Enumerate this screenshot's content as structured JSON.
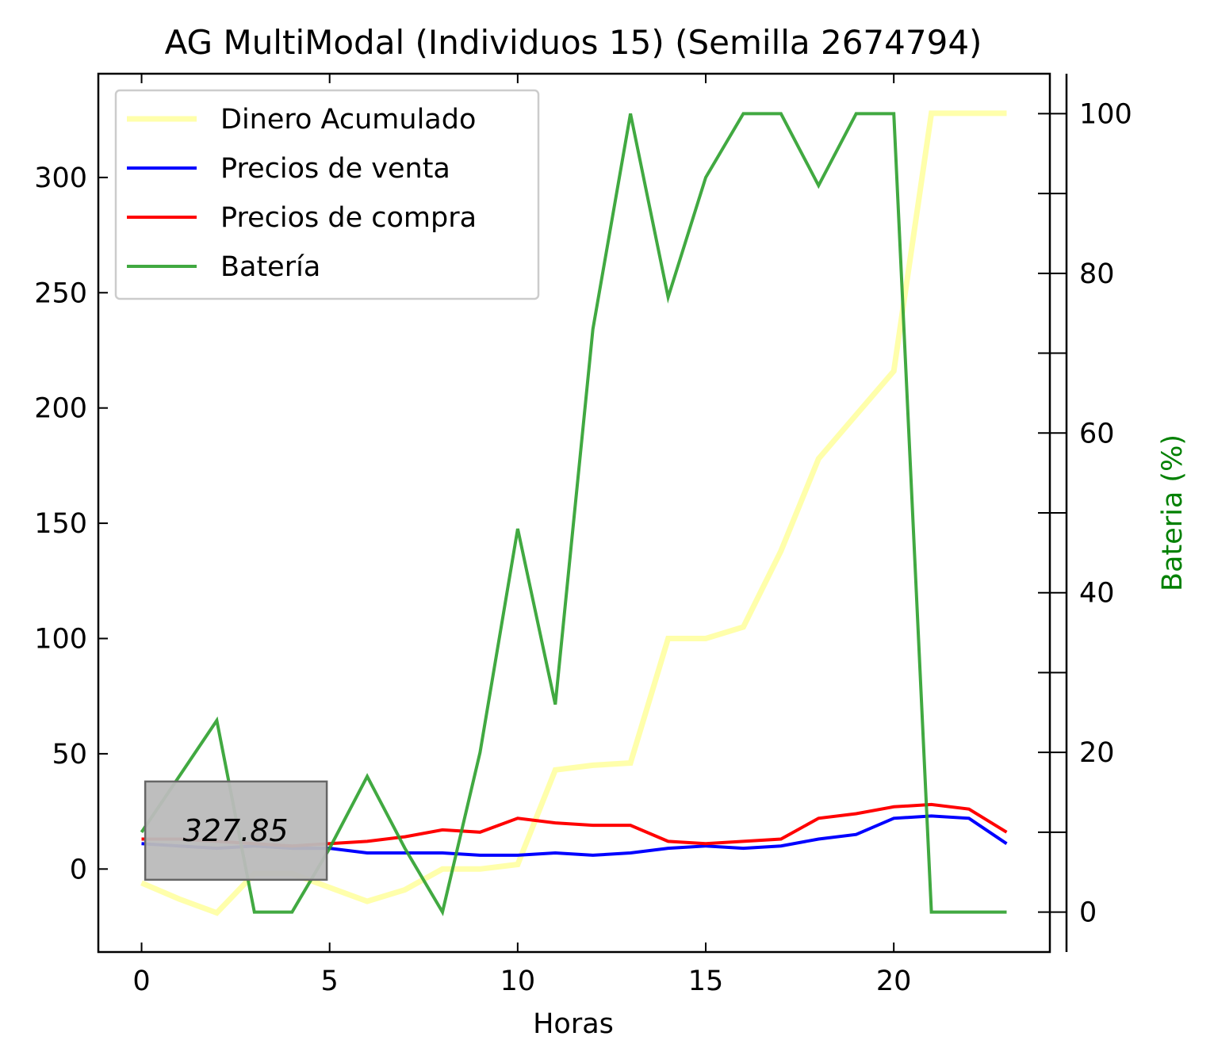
{
  "chart_data": {
    "type": "line",
    "title": "AG MultiModal (Individuos 15) (Semilla 2674794)",
    "xlabel": "Horas",
    "ylabel": "",
    "y2label": "Bateria (%)",
    "xlim": [
      -1.15,
      24.15
    ],
    "ylim": [
      -36,
      345
    ],
    "y2lim": [
      -5,
      105
    ],
    "xticks": [
      0,
      5,
      10,
      15,
      20
    ],
    "yticks": [
      0,
      50,
      100,
      150,
      200,
      250,
      300
    ],
    "y2ticks": [
      0,
      20,
      40,
      60,
      80,
      100
    ],
    "grid": false,
    "legend_position": "top-left",
    "x": [
      0,
      1,
      2,
      3,
      4,
      5,
      6,
      7,
      8,
      9,
      10,
      11,
      12,
      13,
      14,
      15,
      16,
      17,
      18,
      19,
      20,
      21,
      22,
      23
    ],
    "series": [
      {
        "name": "Dinero Acumulado",
        "axis": "left",
        "color": "#ffff66",
        "values": [
          -6,
          -13,
          -19,
          -2,
          -2,
          -8,
          -14,
          -9,
          0,
          0,
          2,
          43,
          45,
          46,
          100,
          100,
          105,
          138,
          178,
          197,
          216,
          327.85,
          327.85,
          327.85
        ]
      },
      {
        "name": "Precios de venta",
        "axis": "left",
        "color": "#0000ff",
        "values": [
          11,
          10,
          9,
          10,
          9,
          9,
          7,
          7,
          7,
          6,
          6,
          7,
          6,
          7,
          9,
          10,
          9,
          10,
          13,
          15,
          22,
          23,
          22,
          11
        ]
      },
      {
        "name": "Precios de compra",
        "axis": "left",
        "color": "#ff0000",
        "values": [
          13,
          13,
          12,
          11,
          10,
          11,
          12,
          14,
          17,
          16,
          22,
          20,
          19,
          19,
          12,
          11,
          12,
          13,
          22,
          24,
          27,
          28,
          26,
          16
        ]
      },
      {
        "name": "Batería",
        "axis": "right",
        "color": "#2ca02c",
        "values": [
          10,
          17,
          24,
          0,
          0,
          8,
          17,
          8,
          0,
          20,
          48,
          26,
          73,
          100,
          77,
          92,
          100,
          100,
          91,
          100,
          100,
          0,
          0,
          0
        ]
      }
    ],
    "annotations": [
      {
        "text": "327.85",
        "x": 2.5,
        "y": 17
      }
    ]
  },
  "colors": {
    "battery_label": "#008000",
    "annotation_box": "#bbbbbb"
  }
}
